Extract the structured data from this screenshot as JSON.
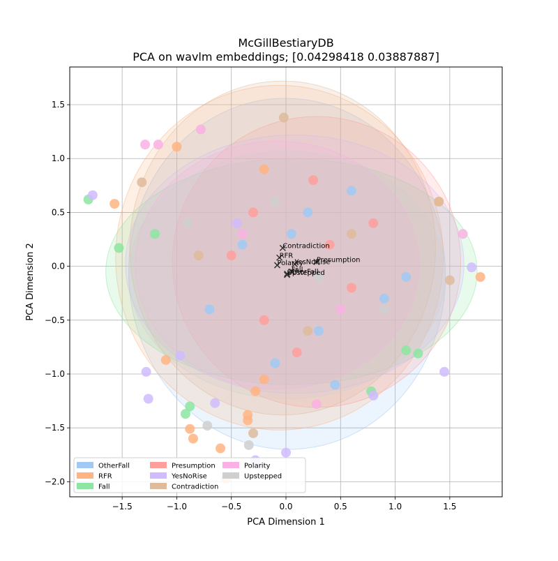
{
  "chart_data": {
    "type": "scatter",
    "title": "McGillBestiaryDB",
    "subtitle": "PCA on wavlm embeddings; [0.04298418 0.03887887]",
    "xlabel": "PCA Dimension 1",
    "ylabel": "PCA Dimension 2",
    "xlim": [
      -1.98,
      1.98
    ],
    "ylim": [
      -2.14,
      1.85
    ],
    "x_ticks": [
      -1.5,
      -1.0,
      -0.5,
      0.0,
      0.5,
      1.0,
      1.5
    ],
    "x_tick_labels": [
      "−1.5",
      "−1.0",
      "−0.5",
      "0.0",
      "0.5",
      "1.0",
      "1.5"
    ],
    "y_ticks": [
      -2.0,
      -1.5,
      -1.0,
      -0.5,
      0.0,
      0.5,
      1.0,
      1.5
    ],
    "y_tick_labels": [
      "−2.0",
      "−1.5",
      "−1.0",
      "−0.5",
      "0.0",
      "0.5",
      "1.0",
      "1.5"
    ],
    "grid": true,
    "legend_position": "lower-left",
    "legend": [
      {
        "name": "OtherFall",
        "color": "#a1c9f4"
      },
      {
        "name": "RFR",
        "color": "#ffb482"
      },
      {
        "name": "Fall",
        "color": "#8de5a1"
      },
      {
        "name": "Presumption",
        "color": "#ff9f9b"
      },
      {
        "name": "YesNoRise",
        "color": "#d0bbff"
      },
      {
        "name": "Contradiction",
        "color": "#debb9b"
      },
      {
        "name": "Polarity",
        "color": "#fab0e4"
      },
      {
        "name": "Upstepped",
        "color": "#cfcfcf"
      }
    ],
    "series": [
      {
        "name": "OtherFall",
        "color": "#a1c9f4",
        "centroid": [
          0.01,
          -0.07
        ],
        "ellipse": {
          "rx": 1.45,
          "ry": 1.63,
          "angle": -3
        },
        "x": [
          0.3,
          -0.4,
          0.9,
          0.2,
          -0.1,
          0.6,
          1.1,
          -0.7,
          0.45,
          0.05
        ],
        "y": [
          -0.6,
          0.2,
          -0.3,
          0.5,
          -0.9,
          0.7,
          -0.1,
          -0.4,
          -1.1,
          0.3
        ]
      },
      {
        "name": "RFR",
        "color": "#ffb482",
        "centroid": [
          -0.06,
          0.08
        ],
        "ellipse": {
          "rx": 1.5,
          "ry": 1.6,
          "angle": 0
        },
        "x": [
          -1.57,
          -1.0,
          -0.6,
          -0.55,
          -0.35,
          -0.35,
          -0.28,
          -0.88,
          -0.85,
          -0.2,
          1.78,
          1.4,
          -1.1,
          -0.2
        ],
        "y": [
          0.58,
          1.11,
          -1.69,
          -1.97,
          -1.38,
          -1.43,
          -1.16,
          -1.51,
          -1.6,
          0.9,
          -0.1,
          0.6,
          -0.87,
          -1.05
        ]
      },
      {
        "name": "Fall",
        "color": "#8de5a1",
        "centroid": [
          0.05,
          -0.05
        ],
        "ellipse": {
          "rx": 1.7,
          "ry": 1.05,
          "angle": 0
        },
        "x": [
          -1.81,
          -1.53,
          -0.92,
          -0.88,
          1.1,
          1.21,
          0.78,
          -1.2
        ],
        "y": [
          0.62,
          0.17,
          -1.37,
          -1.3,
          -0.78,
          -0.81,
          -1.16,
          0.3
        ]
      },
      {
        "name": "Presumption",
        "color": "#ff9f9b",
        "centroid": [
          0.28,
          0.04
        ],
        "ellipse": {
          "rx": 1.32,
          "ry": 1.35,
          "angle": 0
        },
        "x": [
          0.4,
          -0.2,
          0.8,
          0.1,
          -0.5,
          0.6,
          0.25,
          -0.3
        ],
        "y": [
          0.2,
          -0.5,
          0.4,
          -0.8,
          0.1,
          -0.2,
          0.8,
          0.5
        ]
      },
      {
        "name": "YesNoRise",
        "color": "#d0bbff",
        "centroid": [
          0.08,
          0.02
        ],
        "ellipse": {
          "rx": 1.55,
          "ry": 1.2,
          "angle": 0
        },
        "x": [
          -1.77,
          -1.28,
          -1.26,
          1.7,
          -0.65,
          -0.28,
          0.0,
          -0.97,
          1.45,
          -0.45,
          0.8
        ],
        "y": [
          0.66,
          -0.98,
          -1.23,
          -0.01,
          -1.27,
          -1.8,
          -1.73,
          -0.83,
          -0.98,
          0.4,
          -1.2
        ]
      },
      {
        "name": "Contradiction",
        "color": "#debb9b",
        "centroid": [
          -0.03,
          0.17
        ],
        "ellipse": {
          "rx": 1.4,
          "ry": 1.55,
          "angle": 0
        },
        "x": [
          -0.02,
          -1.32,
          1.4,
          1.5,
          -0.3,
          0.6,
          -0.8,
          0.2
        ],
        "y": [
          1.38,
          0.78,
          0.6,
          -0.13,
          -1.55,
          0.3,
          0.1,
          -0.6
        ]
      },
      {
        "name": "Polarity",
        "color": "#fab0e4",
        "centroid": [
          -0.08,
          0.01
        ],
        "ellipse": {
          "rx": 1.3,
          "ry": 1.15,
          "angle": 0
        },
        "x": [
          -1.29,
          -1.17,
          -0.78,
          1.62,
          0.28,
          -0.4,
          0.5
        ],
        "y": [
          1.13,
          1.13,
          1.27,
          0.3,
          -1.28,
          0.3,
          -0.4
        ]
      },
      {
        "name": "Upstepped",
        "color": "#cfcfcf",
        "centroid": [
          0.01,
          -0.08
        ],
        "ellipse": {
          "rx": 1.45,
          "ry": 1.15,
          "angle": 0
        },
        "x": [
          -0.72,
          -0.34,
          0.3,
          -0.9,
          0.9,
          -0.1
        ],
        "y": [
          -1.48,
          -1.66,
          -0.1,
          0.4,
          -0.4,
          0.6
        ]
      }
    ]
  }
}
